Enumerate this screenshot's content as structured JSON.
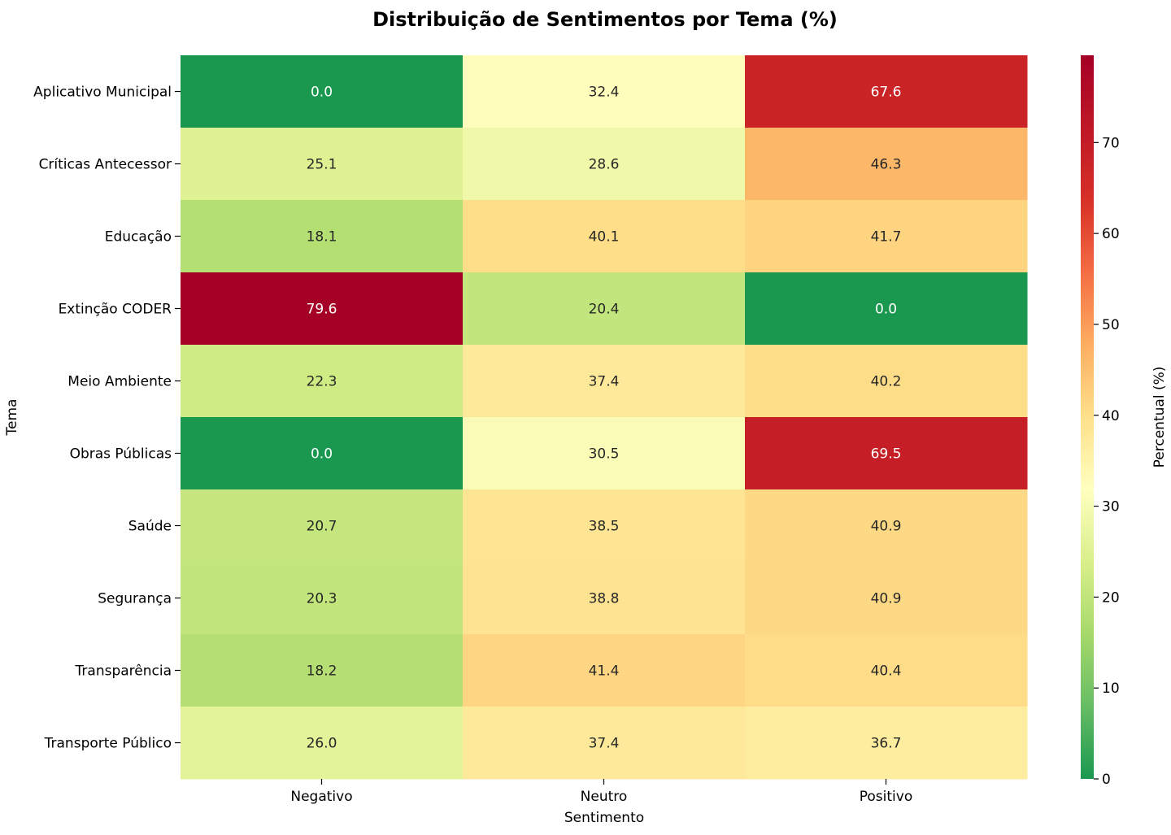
{
  "chart_data": {
    "type": "heatmap",
    "title": "Distribuição de Sentimentos por Tema (%)",
    "xlabel": "Sentimento",
    "ylabel": "Tema",
    "colorbar_label": "Percentual (%)",
    "colormap": "RdYlGn_r",
    "value_range": [
      0,
      79.6
    ],
    "colorbar_ticks": [
      "0",
      "10",
      "20",
      "30",
      "40",
      "50",
      "60",
      "70"
    ],
    "x": [
      "Negativo",
      "Neutro",
      "Positivo"
    ],
    "y": [
      "Aplicativo Municipal",
      "Críticas Antecessor",
      "Educação",
      "Extinção CODER",
      "Meio Ambiente",
      "Obras Públicas",
      "Saúde",
      "Segurança",
      "Transparência",
      "Transporte Público"
    ],
    "values": [
      [
        0.0,
        32.4,
        67.6
      ],
      [
        25.1,
        28.6,
        46.3
      ],
      [
        18.1,
        40.1,
        41.7
      ],
      [
        79.6,
        20.4,
        0.0
      ],
      [
        22.3,
        37.4,
        40.2
      ],
      [
        0.0,
        30.5,
        69.5
      ],
      [
        20.7,
        38.5,
        40.9
      ],
      [
        20.3,
        38.8,
        40.9
      ],
      [
        18.2,
        41.4,
        40.4
      ],
      [
        26.0,
        37.4,
        36.7
      ]
    ]
  }
}
